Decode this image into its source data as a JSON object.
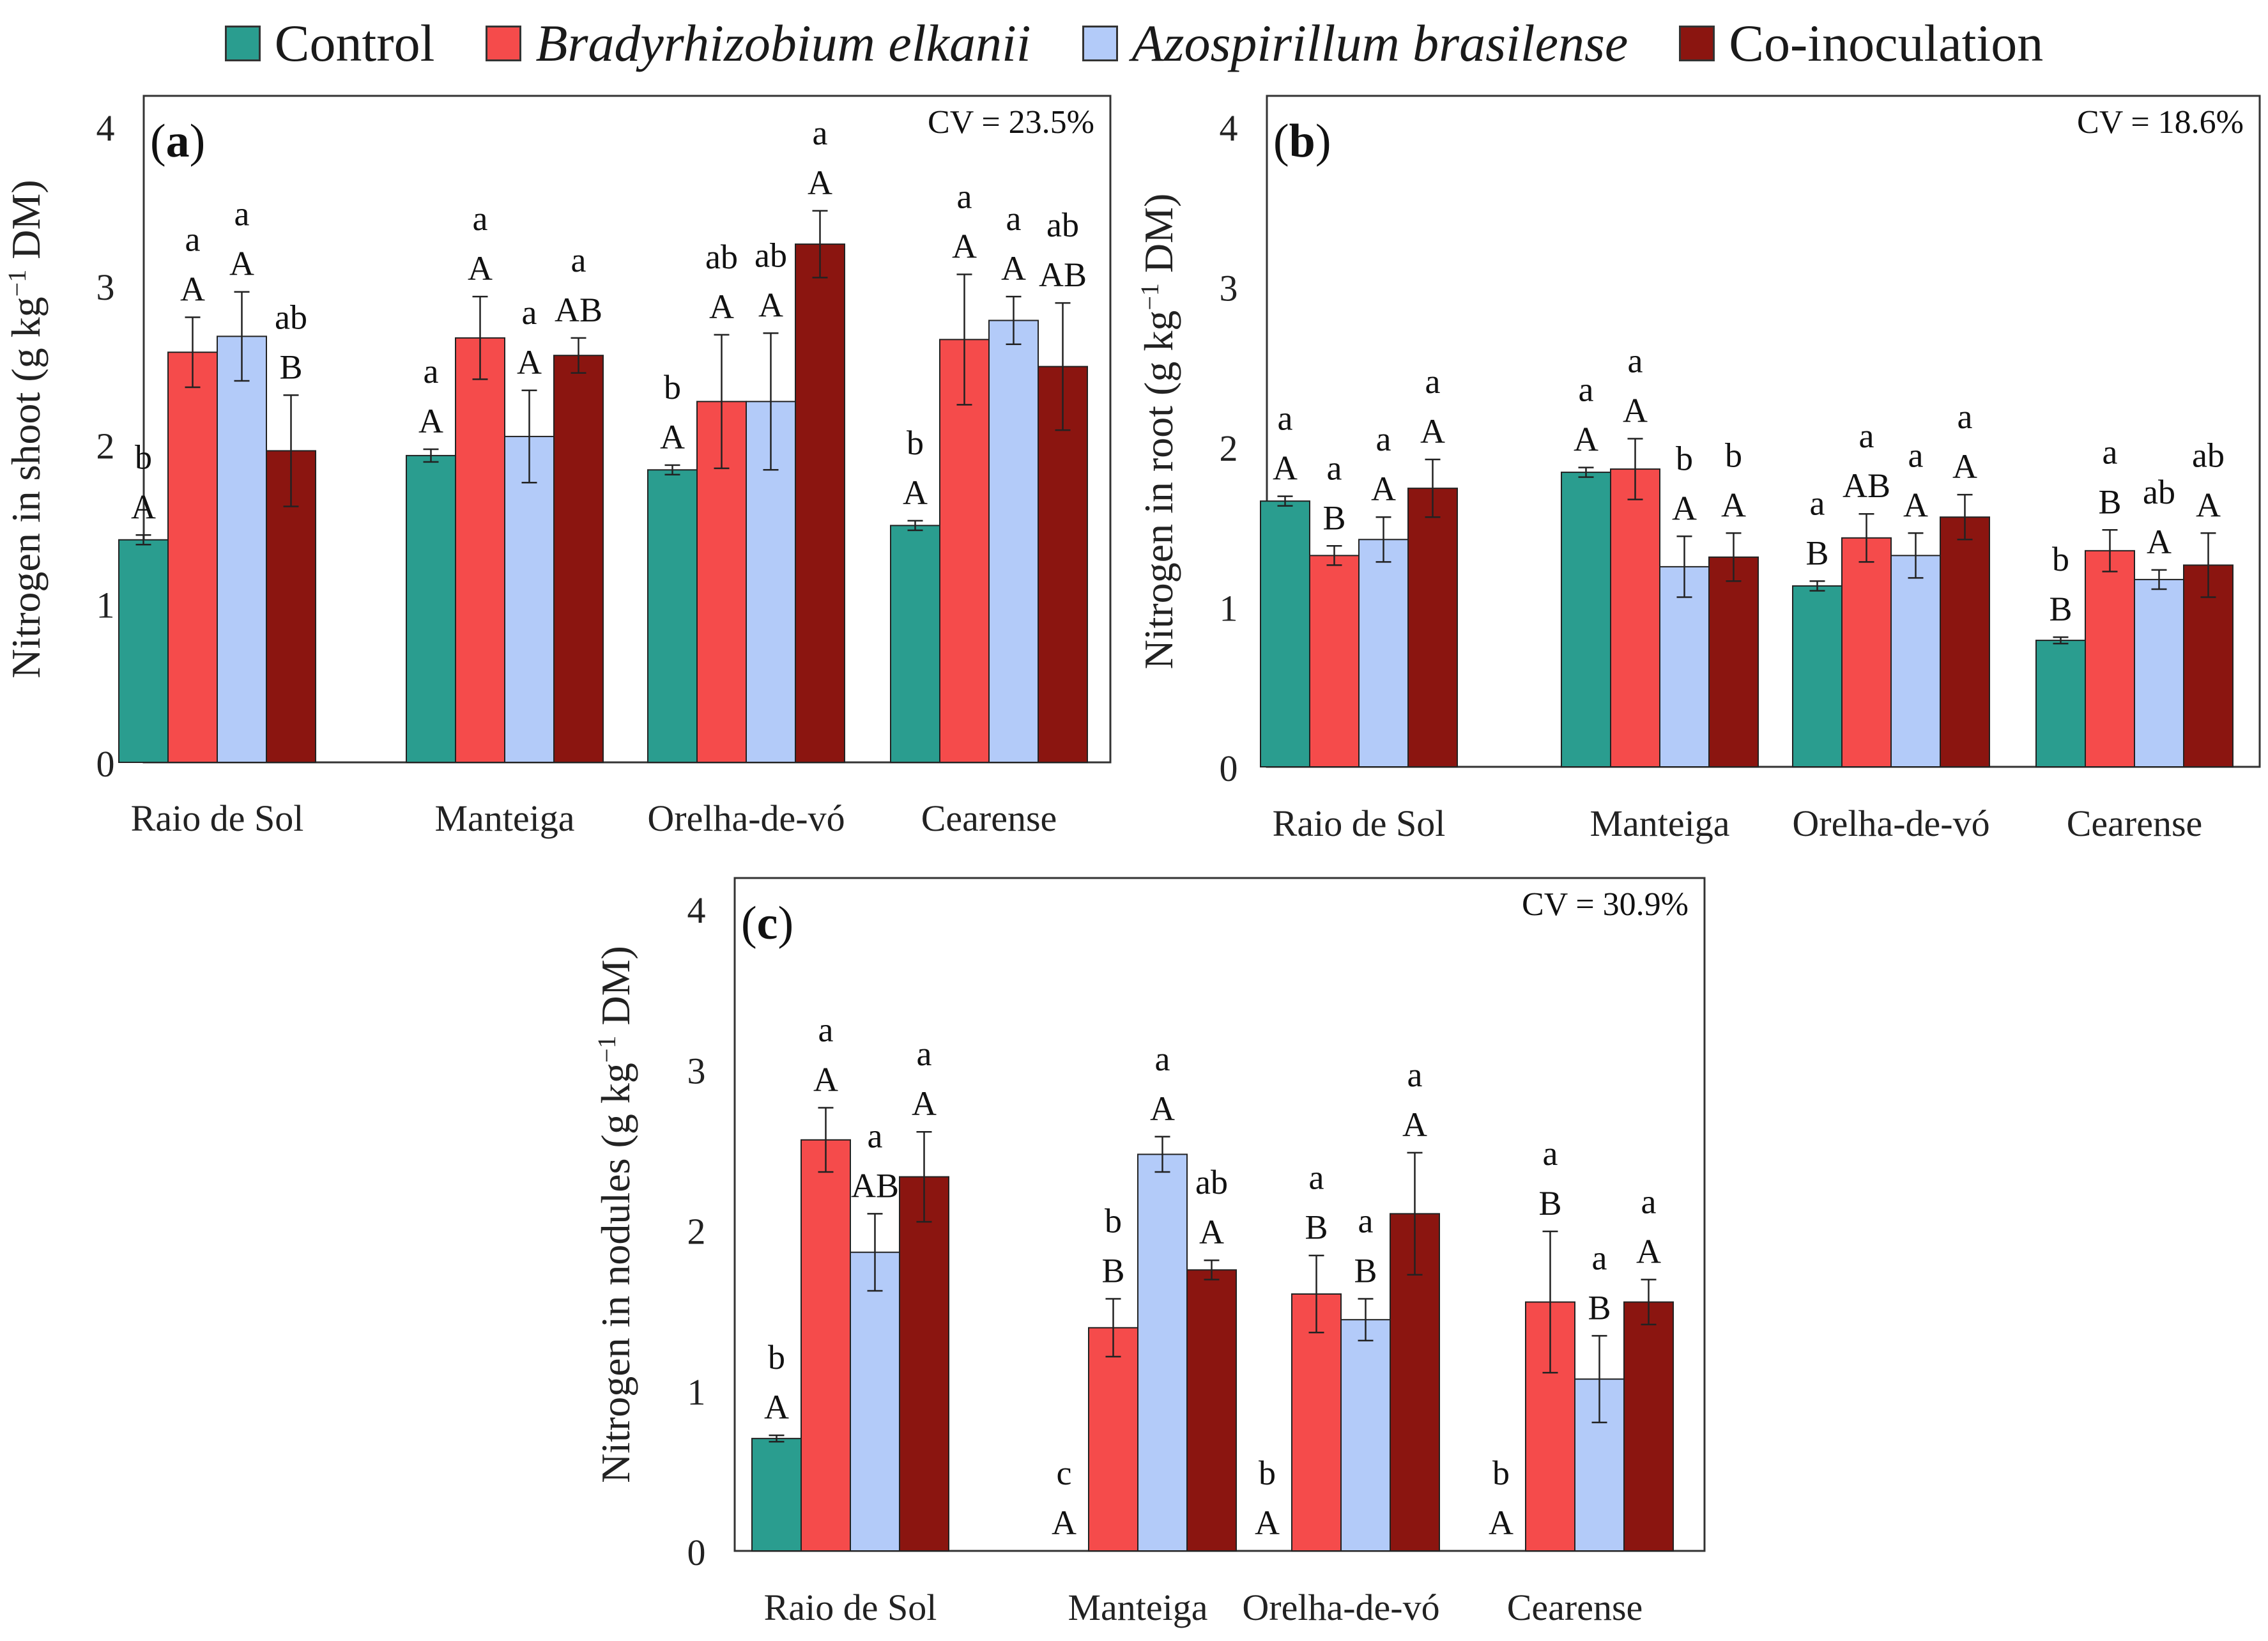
{
  "legend": [
    {
      "label": "Control",
      "color": "#2a9d8f",
      "italic": false
    },
    {
      "label": "Bradyrhizobium elkanii",
      "color": "#f54b4b",
      "italic": true
    },
    {
      "label": "Azospirillum brasilense",
      "color": "#b3cbf9",
      "italic": true
    },
    {
      "label": "Co-inoculation",
      "color": "#8b1510",
      "italic": false
    }
  ],
  "chart_data": [
    {
      "type": "bar",
      "panel_label": "a",
      "cv_label": "CV = 23.5%",
      "ylabel": "Nitrogen in shoot",
      "ylim": [
        0,
        4
      ],
      "yticks": [
        0,
        1,
        2,
        3,
        4
      ],
      "categories": [
        "Raio de Sol",
        "Manteiga",
        "Orelha-de-vó",
        "Cearense"
      ],
      "series": [
        {
          "name": "Control",
          "values": [
            1.4,
            1.93,
            1.84,
            1.49
          ],
          "errors": [
            0.03,
            0.04,
            0.03,
            0.03
          ],
          "letters_lower": [
            "b",
            "a",
            "b",
            "b"
          ],
          "letters_upper": [
            "A",
            "A",
            "A",
            "A"
          ]
        },
        {
          "name": "Bradyrhizobium elkanii",
          "values": [
            2.58,
            2.67,
            2.27,
            2.66
          ],
          "errors": [
            0.22,
            0.26,
            0.42,
            0.41
          ],
          "letters_lower": [
            "a",
            "a",
            "ab",
            "a"
          ],
          "letters_upper": [
            "A",
            "A",
            "A",
            "A"
          ]
        },
        {
          "name": "Azospirillum brasilense",
          "values": [
            2.68,
            2.05,
            2.27,
            2.78
          ],
          "errors": [
            0.28,
            0.29,
            0.43,
            0.15
          ],
          "letters_lower": [
            "a",
            "a",
            "ab",
            "a"
          ],
          "letters_upper": [
            "A",
            "A",
            "A",
            "A"
          ]
        },
        {
          "name": "Co-inoculation",
          "values": [
            1.96,
            2.56,
            3.26,
            2.49
          ],
          "errors": [
            0.35,
            0.11,
            0.21,
            0.4
          ],
          "letters_lower": [
            "ab",
            "a",
            "a",
            "ab"
          ],
          "letters_upper": [
            "B",
            "AB",
            "A",
            "AB"
          ]
        }
      ]
    },
    {
      "type": "bar",
      "panel_label": "b",
      "cv_label": "CV = 18.6%",
      "ylabel": "Nitrogen in root",
      "ylim": [
        0,
        4
      ],
      "yticks": [
        0,
        1,
        2,
        3,
        4
      ],
      "categories": [
        "Raio de Sol",
        "Manteiga",
        "Orelha-de-vó",
        "Cearense"
      ],
      "series": [
        {
          "name": "Control",
          "values": [
            1.66,
            1.84,
            1.13,
            0.79
          ],
          "errors": [
            0.03,
            0.03,
            0.03,
            0.02
          ],
          "letters_lower": [
            "a",
            "a",
            "a",
            "b"
          ],
          "letters_upper": [
            "A",
            "A",
            "B",
            "B"
          ]
        },
        {
          "name": "Bradyrhizobium elkanii",
          "values": [
            1.32,
            1.86,
            1.43,
            1.35
          ],
          "errors": [
            0.06,
            0.19,
            0.15,
            0.13
          ],
          "letters_lower": [
            "a",
            "a",
            "a",
            "a"
          ],
          "letters_upper": [
            "B",
            "A",
            "AB",
            "B"
          ]
        },
        {
          "name": "Azospirillum brasilense",
          "values": [
            1.42,
            1.25,
            1.32,
            1.17
          ],
          "errors": [
            0.14,
            0.19,
            0.14,
            0.06
          ],
          "letters_lower": [
            "a",
            "b",
            "a",
            "ab"
          ],
          "letters_upper": [
            "A",
            "A",
            "A",
            "A"
          ]
        },
        {
          "name": "Co-inoculation",
          "values": [
            1.74,
            1.31,
            1.56,
            1.26
          ],
          "errors": [
            0.18,
            0.15,
            0.14,
            0.2
          ],
          "letters_lower": [
            "a",
            "b",
            "a",
            "ab"
          ],
          "letters_upper": [
            "A",
            "A",
            "A",
            "A"
          ]
        }
      ]
    },
    {
      "type": "bar",
      "panel_label": "c",
      "cv_label": "CV = 30.9%",
      "ylabel": "Nitrogen in nodules",
      "ylim": [
        0,
        4
      ],
      "yticks": [
        0,
        1,
        2,
        3,
        4
      ],
      "categories": [
        "Raio de Sol",
        "Manteiga",
        "Orelha-de-vó",
        "Cearense"
      ],
      "series": [
        {
          "name": "Control",
          "values": [
            0.7,
            0,
            0,
            0
          ],
          "errors": [
            0.02,
            0,
            0,
            0
          ],
          "letters_lower": [
            "b",
            "c",
            "b",
            "b"
          ],
          "letters_upper": [
            "A",
            "A",
            "A",
            "A"
          ]
        },
        {
          "name": "Bradyrhizobium elkanii",
          "values": [
            2.56,
            1.39,
            1.6,
            1.55
          ],
          "errors": [
            0.2,
            0.18,
            0.24,
            0.44
          ],
          "letters_lower": [
            "a",
            "b",
            "a",
            "a"
          ],
          "letters_upper": [
            "A",
            "B",
            "B",
            "B"
          ]
        },
        {
          "name": "Azospirillum brasilense",
          "values": [
            1.86,
            2.47,
            1.44,
            1.07
          ],
          "errors": [
            0.24,
            0.11,
            0.13,
            0.27
          ],
          "letters_lower": [
            "a",
            "a",
            "a",
            "a"
          ],
          "letters_upper": [
            "AB",
            "A",
            "B",
            "B"
          ]
        },
        {
          "name": "Co-inoculation",
          "values": [
            2.33,
            1.75,
            2.1,
            1.55
          ],
          "errors": [
            0.28,
            0.06,
            0.38,
            0.14
          ],
          "letters_lower": [
            "a",
            "ab",
            "a",
            "a"
          ],
          "letters_upper": [
            "A",
            "A",
            "A",
            "A"
          ]
        }
      ]
    }
  ]
}
